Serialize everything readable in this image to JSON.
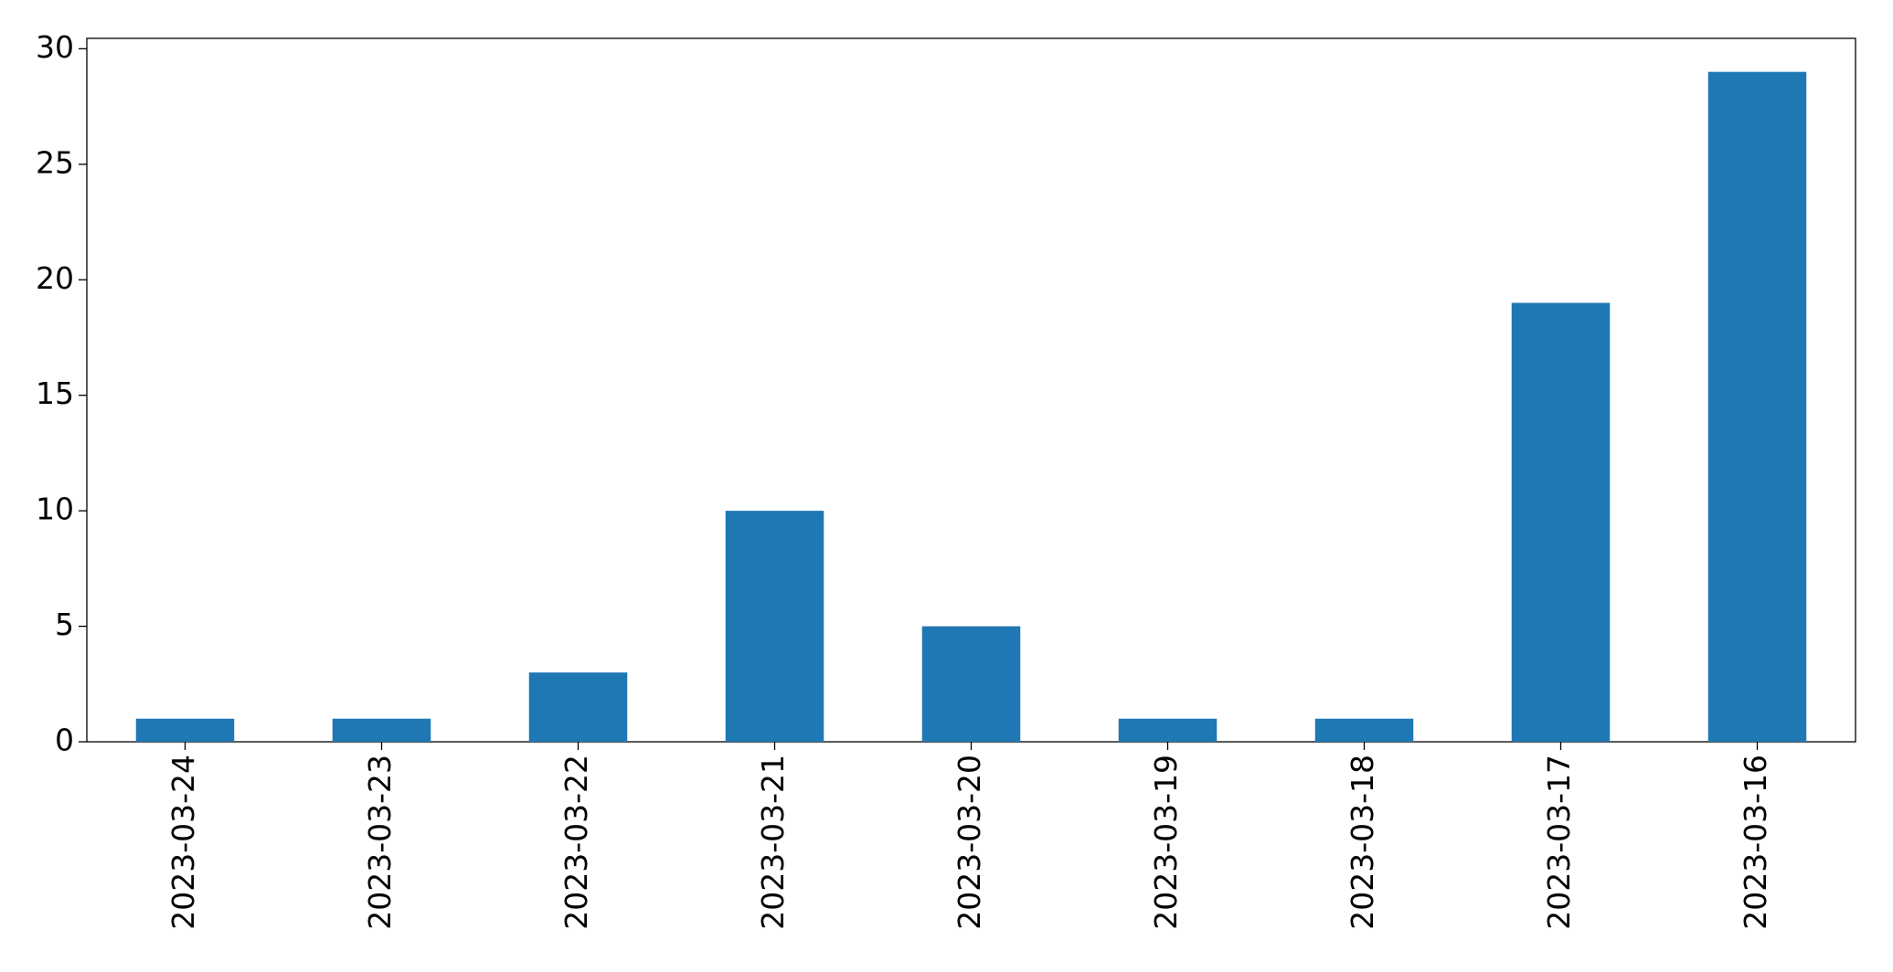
{
  "chart_data": {
    "type": "bar",
    "categories": [
      "2023-03-24",
      "2023-03-23",
      "2023-03-22",
      "2023-03-21",
      "2023-03-20",
      "2023-03-19",
      "2023-03-18",
      "2023-03-17",
      "2023-03-16"
    ],
    "values": [
      1,
      1,
      3,
      10,
      5,
      1,
      1,
      19,
      29
    ],
    "color": "#1f77b4",
    "ylim": [
      0,
      30.45
    ],
    "yticks": [
      0,
      5,
      10,
      15,
      20,
      25,
      30
    ],
    "grid": false
  }
}
